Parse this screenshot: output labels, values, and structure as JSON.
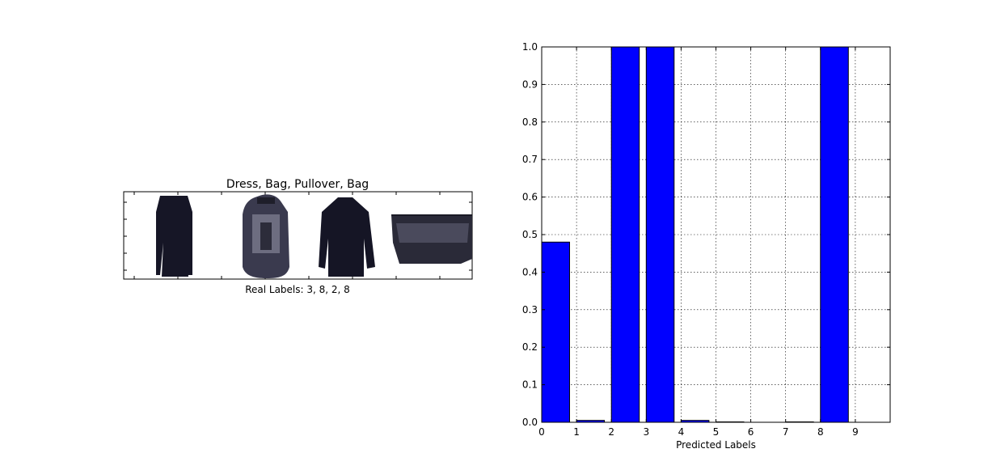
{
  "left_panel": {
    "title": "Dress, Bag, Pullover, Bag",
    "xlabel": "Real Labels: 3, 8, 2, 8",
    "images": [
      {
        "icon": "dress-icon"
      },
      {
        "icon": "bag-backpack-icon"
      },
      {
        "icon": "pullover-icon"
      },
      {
        "icon": "bag-icon"
      }
    ]
  },
  "chart_data": {
    "type": "bar",
    "xlabel": "Predicted Labels",
    "ylabel": "",
    "categories": [
      "0",
      "1",
      "2",
      "3",
      "4",
      "5",
      "6",
      "7",
      "8",
      "9"
    ],
    "values": [
      0.48,
      0.005,
      1.0,
      1.0,
      0.005,
      0.001,
      0.0,
      0.001,
      1.0,
      0.0
    ],
    "xlim": [
      0,
      10
    ],
    "ylim": [
      0,
      1.0
    ],
    "yticks": [
      0.0,
      0.1,
      0.2,
      0.3,
      0.4,
      0.5,
      0.6,
      0.7,
      0.8,
      0.9,
      1.0
    ],
    "ytick_labels": [
      "0.0",
      "0.1",
      "0.2",
      "0.3",
      "0.4",
      "0.5",
      "0.6",
      "0.7",
      "0.8",
      "0.9",
      "1.0"
    ],
    "xticks": [
      0,
      1,
      2,
      3,
      4,
      5,
      6,
      7,
      8,
      9
    ],
    "xtick_labels": [
      "0",
      "1",
      "2",
      "3",
      "4",
      "5",
      "6",
      "7",
      "8",
      "9"
    ],
    "bar_color": "#0000ff",
    "grid": true
  }
}
